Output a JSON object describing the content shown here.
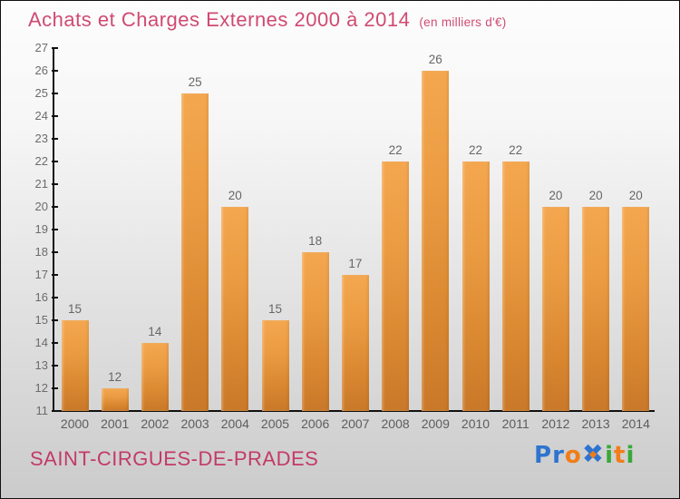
{
  "title": {
    "text": "Achats et Charges Externes 2000 à 2014",
    "subtitle": "(en milliers d'€)",
    "color": "#d04a72"
  },
  "chart_data": {
    "type": "bar",
    "title": "Achats et Charges Externes 2000 à 2014",
    "subtitle": "(en milliers d'€)",
    "categories": [
      "2000",
      "2001",
      "2002",
      "2003",
      "2004",
      "2005",
      "2006",
      "2007",
      "2008",
      "2009",
      "2010",
      "2011",
      "2012",
      "2013",
      "2014"
    ],
    "values": [
      15,
      12,
      14,
      25,
      20,
      15,
      18,
      17,
      22,
      26,
      22,
      22,
      20,
      20,
      20
    ],
    "xlabel": "",
    "ylabel": "",
    "ylim": [
      11,
      27
    ],
    "ytick_step": 1,
    "grid": false,
    "legend": null,
    "value_labels": true,
    "bar_color_top": "#f4a74f",
    "bar_color_bottom": "#c97829",
    "label_color": "#666666",
    "axis_color": "#111111"
  },
  "footer": {
    "municipality": "SAINT-CIRGUES-DE-PRADES",
    "color": "#c33a66"
  },
  "logo": {
    "name": "Proxiti",
    "letters": [
      {
        "ch": "P",
        "color": "#2e74cf"
      },
      {
        "ch": "r",
        "color": "#2e74cf"
      },
      {
        "ch": "o",
        "color": "#f07d17"
      },
      {
        "ch": "✖",
        "color": "#2e74cf",
        "big": true,
        "dot": "#f07d17"
      },
      {
        "ch": "i",
        "color": "#3aa838"
      },
      {
        "ch": "t",
        "color": "#f07d17"
      },
      {
        "ch": "i",
        "color": "#3aa838"
      }
    ]
  }
}
